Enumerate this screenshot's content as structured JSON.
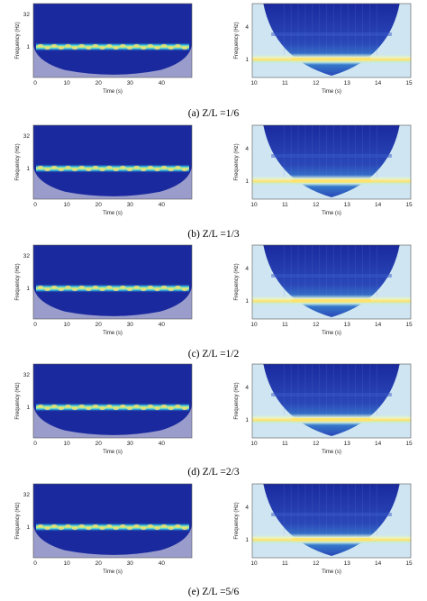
{
  "chart_data": [
    {
      "type": "heatmap",
      "panel": "a",
      "side": "left",
      "xlabel": "Time (s)",
      "ylabel": "Frequency (Hz)",
      "xlim": [
        0,
        49
      ],
      "x_ticks": [
        0,
        10,
        20,
        30,
        40
      ],
      "y_ticks": [
        32,
        1
      ],
      "band_frequency": 1
    },
    {
      "type": "heatmap",
      "panel": "a",
      "side": "right",
      "xlabel": "Time (s)",
      "ylabel": "Frequency (Hz)",
      "xlim": [
        10,
        15
      ],
      "x_ticks": [
        10,
        11,
        12,
        13,
        14,
        15
      ],
      "y_ticks": [
        4,
        1
      ],
      "band_frequency": 1
    },
    {
      "type": "heatmap",
      "panel": "b",
      "side": "left",
      "xlabel": "Time (s)",
      "ylabel": "Frequency (Hz)",
      "xlim": [
        0,
        49
      ],
      "x_ticks": [
        0,
        10,
        20,
        30,
        40
      ],
      "y_ticks": [
        32,
        1
      ],
      "band_frequency": 1
    },
    {
      "type": "heatmap",
      "panel": "b",
      "side": "right",
      "xlabel": "Time (s)",
      "ylabel": "Frequency (Hz)",
      "xlim": [
        10,
        15
      ],
      "x_ticks": [
        10,
        11,
        12,
        13,
        14,
        15
      ],
      "y_ticks": [
        4,
        1
      ],
      "band_frequency": 1
    },
    {
      "type": "heatmap",
      "panel": "c",
      "side": "left",
      "xlabel": "Time (s)",
      "ylabel": "Frequency (Hz)",
      "xlim": [
        0,
        49
      ],
      "x_ticks": [
        0,
        10,
        20,
        30,
        40
      ],
      "y_ticks": [
        32,
        1
      ],
      "band_frequency": 1
    },
    {
      "type": "heatmap",
      "panel": "c",
      "side": "right",
      "xlabel": "Time (s)",
      "ylabel": "Frequency (Hz)",
      "xlim": [
        10,
        15
      ],
      "x_ticks": [
        10,
        11,
        12,
        13,
        14,
        15
      ],
      "y_ticks": [
        4,
        1
      ],
      "band_frequency": 1
    },
    {
      "type": "heatmap",
      "panel": "d",
      "side": "left",
      "xlabel": "Time (s)",
      "ylabel": "Frequency (Hz)",
      "xlim": [
        0,
        49
      ],
      "x_ticks": [
        0,
        10,
        20,
        30,
        40
      ],
      "y_ticks": [
        32,
        1
      ],
      "band_frequency": 1
    },
    {
      "type": "heatmap",
      "panel": "d",
      "side": "right",
      "xlabel": "Time (s)",
      "ylabel": "Frequency (Hz)",
      "xlim": [
        10,
        15
      ],
      "x_ticks": [
        10,
        11,
        12,
        13,
        14,
        15
      ],
      "y_ticks": [
        4,
        1
      ],
      "band_frequency": 1
    },
    {
      "type": "heatmap",
      "panel": "e",
      "side": "left",
      "xlabel": "Time (s)",
      "ylabel": "Frequency (Hz)",
      "xlim": [
        0,
        49
      ],
      "x_ticks": [
        0,
        10,
        20,
        30,
        40
      ],
      "y_ticks": [
        32,
        1
      ],
      "band_frequency": 1
    },
    {
      "type": "heatmap",
      "panel": "e",
      "side": "right",
      "xlabel": "Time (s)",
      "ylabel": "Frequency (Hz)",
      "xlim": [
        10,
        15
      ],
      "x_ticks": [
        10,
        11,
        12,
        13,
        14,
        15
      ],
      "y_ticks": [
        4,
        1
      ],
      "band_frequency": 1
    }
  ],
  "captions": [
    "(a) Z/L =1/6",
    "(b) Z/L =1/3",
    "(c) Z/L =1/2",
    "(d) Z/L =2/3",
    "(e) Z/L =5/6"
  ],
  "colors": {
    "background_blue": "#1a2a9e",
    "cone_region": "#9a9ccc",
    "band_yellow": "#ffe26a",
    "band_cyan": "#3ac8e8",
    "band_green": "#6ad088"
  }
}
